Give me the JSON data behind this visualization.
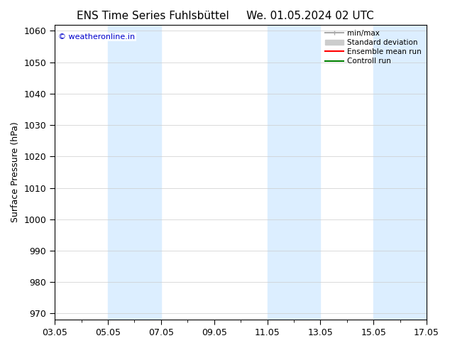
{
  "title_left": "ENS Time Series Fuhlsbüttel",
  "title_right": "We. 01.05.2024 02 UTC",
  "ylabel": "Surface Pressure (hPa)",
  "ylim": [
    968,
    1062
  ],
  "yticks": [
    970,
    980,
    990,
    1000,
    1010,
    1020,
    1030,
    1040,
    1050,
    1060
  ],
  "xtick_labels": [
    "03.05",
    "05.05",
    "07.05",
    "09.05",
    "11.05",
    "13.05",
    "15.05",
    "17.05"
  ],
  "xtick_positions": [
    0,
    2,
    4,
    6,
    8,
    10,
    12,
    14
  ],
  "shaded_regions": [
    {
      "start": 2,
      "end": 4,
      "color": "#dceeff"
    },
    {
      "start": 8,
      "end": 10,
      "color": "#dceeff"
    },
    {
      "start": 12,
      "end": 14,
      "color": "#dceeff"
    }
  ],
  "watermark_text": "© weatheronline.in",
  "watermark_color": "#0000cc",
  "background_color": "#ffffff",
  "plot_bg_color": "#ffffff",
  "legend_items": [
    {
      "label": "min/max",
      "color": "#aaaaaa",
      "lw": 1.5,
      "style": "solid"
    },
    {
      "label": "Standard deviation",
      "color": "#cccccc",
      "lw": 6,
      "style": "solid"
    },
    {
      "label": "Ensemble mean run",
      "color": "#ff0000",
      "lw": 1.5,
      "style": "solid"
    },
    {
      "label": "Controll run",
      "color": "#008000",
      "lw": 1.5,
      "style": "solid"
    }
  ],
  "grid_color": "#cccccc",
  "tick_color": "#000000",
  "spine_color": "#000000",
  "title_fontsize": 11,
  "axis_label_fontsize": 9,
  "tick_fontsize": 9
}
